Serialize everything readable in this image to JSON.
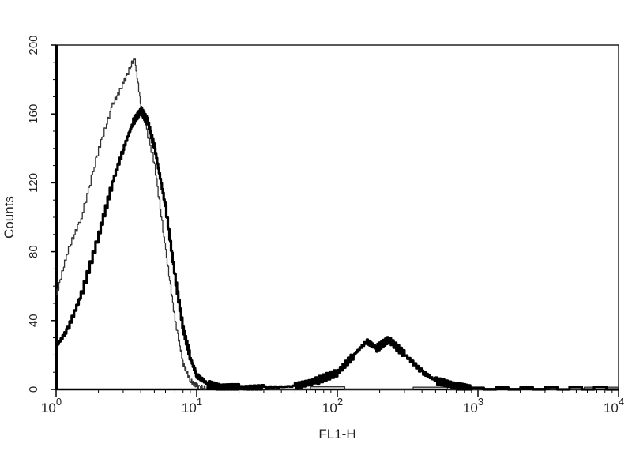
{
  "chart_data": {
    "type": "line",
    "title": "",
    "xlabel": "FL1-H",
    "ylabel": "Counts",
    "xscale": "log",
    "xlim": [
      1,
      10000
    ],
    "ylim": [
      0,
      200
    ],
    "x_ticks": [
      {
        "base": "10",
        "exp": "0"
      },
      {
        "base": "10",
        "exp": "1"
      },
      {
        "base": "10",
        "exp": "2"
      },
      {
        "base": "10",
        "exp": "3"
      },
      {
        "base": "10",
        "exp": "4"
      }
    ],
    "y_ticks": [
      "0",
      "40",
      "80",
      "120",
      "160",
      "200"
    ],
    "grid": false,
    "legend": "none",
    "series": [
      {
        "style": "thin",
        "color": "#333333",
        "points": [
          [
            1.0,
            55
          ],
          [
            1.2,
            80
          ],
          [
            1.5,
            100
          ],
          [
            2.0,
            140
          ],
          [
            2.5,
            165
          ],
          [
            3.0,
            178
          ],
          [
            3.6,
            193
          ],
          [
            4.0,
            165
          ],
          [
            5.0,
            130
          ],
          [
            6.0,
            80
          ],
          [
            7.0,
            40
          ],
          [
            8.0,
            15
          ],
          [
            9.0,
            5
          ],
          [
            10,
            2
          ],
          [
            12,
            0
          ],
          [
            10000,
            0
          ]
        ]
      },
      {
        "style": "thick",
        "color": "#000000",
        "points": [
          [
            1.0,
            25
          ],
          [
            1.2,
            35
          ],
          [
            1.5,
            55
          ],
          [
            2.0,
            90
          ],
          [
            2.5,
            120
          ],
          [
            3.0,
            140
          ],
          [
            3.5,
            155
          ],
          [
            4.0,
            162
          ],
          [
            4.5,
            155
          ],
          [
            5.0,
            140
          ],
          [
            6.0,
            105
          ],
          [
            7.0,
            65
          ],
          [
            8.0,
            35
          ],
          [
            9.0,
            18
          ],
          [
            10,
            8
          ],
          [
            12,
            3
          ],
          [
            15,
            1
          ],
          [
            20,
            1
          ],
          [
            30,
            1
          ],
          [
            50,
            2
          ],
          [
            70,
            5
          ],
          [
            100,
            10
          ],
          [
            130,
            20
          ],
          [
            160,
            28
          ],
          [
            190,
            24
          ],
          [
            230,
            29
          ],
          [
            300,
            20
          ],
          [
            400,
            10
          ],
          [
            500,
            5
          ],
          [
            700,
            2
          ],
          [
            900,
            0
          ],
          [
            10000,
            0
          ]
        ]
      }
    ]
  }
}
